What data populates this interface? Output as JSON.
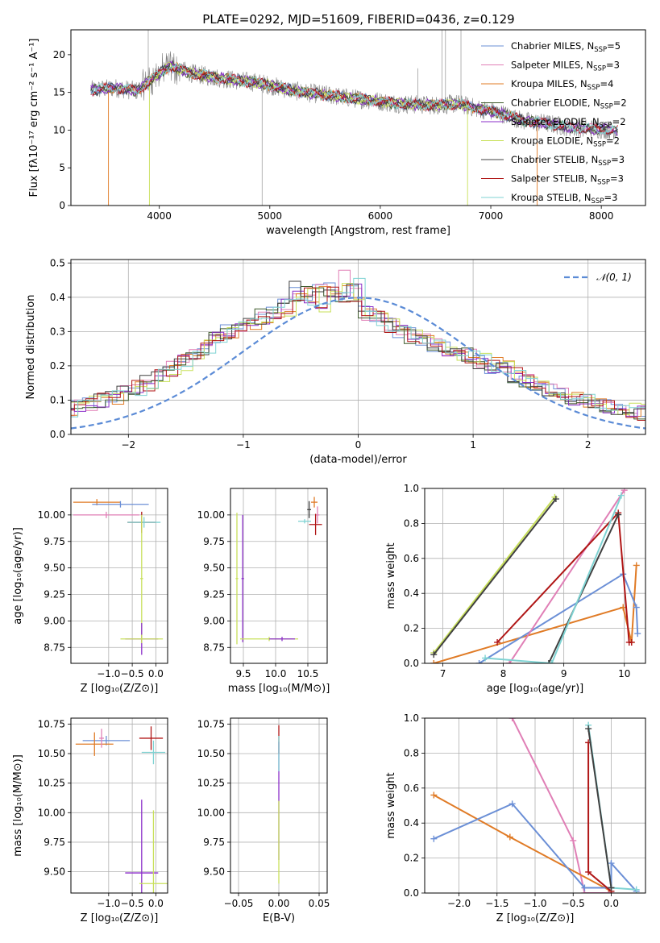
{
  "figure": {
    "title": "PLATE=0292, MJD=51609, FIBERID=0436, z=0.129"
  },
  "colors": {
    "Chabrier MILES": "#6b8fd6",
    "Salpeter MILES": "#e07fb6",
    "Kroupa MILES": "#e07b26",
    "Chabrier ELODIE": "#3d5a2a",
    "Salpeter ELODIE": "#8b2fc9",
    "Kroupa ELODIE": "#c8e05a",
    "Chabrier STELIB": "#404040",
    "Salpeter STELIB": "#b01616",
    "Kroupa STELIB": "#7fd3d3",
    "data": "#808080",
    "gaussian": "#5b8bd6"
  },
  "chart_data": [
    {
      "id": "spectrum",
      "type": "line",
      "xlabel": "wavelength [Angstrom, rest frame]",
      "ylabel": "Flux [fλ10⁻¹⁷ erg cm⁻² s⁻¹ A⁻¹]",
      "xlim": [
        3200,
        8400
      ],
      "ylim": [
        0,
        23.3
      ],
      "xticks": [
        4000,
        5000,
        6000,
        7000,
        8000
      ],
      "yticks": [
        0,
        5,
        10,
        15,
        20
      ],
      "grid": false,
      "legend_position": "top-right",
      "legend": [
        {
          "name": "Chabrier MILES",
          "label": "Chabrier MILES, N",
          "sub": "SSP",
          "eq": "=5"
        },
        {
          "name": "Salpeter MILES",
          "label": "Salpeter MILES, N",
          "sub": "SSP",
          "eq": "=3"
        },
        {
          "name": "Kroupa MILES",
          "label": "Kroupa MILES, N",
          "sub": "SSP",
          "eq": "=4"
        },
        {
          "name": "Chabrier ELODIE",
          "label": "Chabrier ELODIE, N",
          "sub": "SSP",
          "eq": "=2"
        },
        {
          "name": "Salpeter ELODIE",
          "label": "Salpeter ELODIE, N",
          "sub": "SSP",
          "eq": "=2"
        },
        {
          "name": "Kroupa ELODIE",
          "label": "Kroupa ELODIE, N",
          "sub": "SSP",
          "eq": "=2"
        },
        {
          "name": "Chabrier STELIB",
          "label": "Chabrier STELIB, N",
          "sub": "SSP",
          "eq": "=3"
        },
        {
          "name": "Salpeter STELIB",
          "label": "Salpeter STELIB, N",
          "sub": "SSP",
          "eq": "=3"
        },
        {
          "name": "Kroupa STELIB",
          "label": "Kroupa STELIB, N",
          "sub": "SSP",
          "eq": "=3"
        }
      ],
      "data_continuum": [
        [
          3380,
          15.3
        ],
        [
          3600,
          15.6
        ],
        [
          3800,
          15.2
        ],
        [
          3950,
          17.0
        ],
        [
          4100,
          18.5
        ],
        [
          4300,
          17.5
        ],
        [
          4500,
          17.0
        ],
        [
          4700,
          16.6
        ],
        [
          4900,
          16.3
        ],
        [
          5100,
          15.6
        ],
        [
          5300,
          15.0
        ],
        [
          5500,
          14.7
        ],
        [
          5700,
          14.3
        ],
        [
          5900,
          14.0
        ],
        [
          6100,
          13.6
        ],
        [
          6300,
          13.4
        ],
        [
          6500,
          13.3
        ],
        [
          6700,
          13.5
        ],
        [
          6900,
          12.8
        ],
        [
          7100,
          12.2
        ],
        [
          7300,
          11.2
        ],
        [
          7500,
          10.9
        ],
        [
          7700,
          10.4
        ],
        [
          7900,
          10.2
        ],
        [
          8150,
          10.0
        ]
      ],
      "data_spikes": [
        [
          3900,
          23.3
        ],
        [
          4930,
          0
        ],
        [
          6340,
          18.2
        ],
        [
          6560,
          23.3
        ],
        [
          6590,
          23.3
        ],
        [
          6730,
          23.3
        ]
      ],
      "model_edges": [
        {
          "name": "Kroupa MILES",
          "range": [
            3540,
            7420
          ]
        },
        {
          "name": "Kroupa ELODIE",
          "range": [
            3910,
            6790
          ]
        }
      ]
    },
    {
      "id": "residuals",
      "type": "step",
      "xlabel": "(data-model)/error",
      "ylabel": "Normed distribution",
      "xlim": [
        -2.5,
        2.5
      ],
      "ylim": [
        0,
        0.51
      ],
      "xticks": [
        -2,
        -1,
        0,
        1,
        2
      ],
      "yticks": [
        0.0,
        0.1,
        0.2,
        0.3,
        0.4,
        0.5
      ],
      "grid": true,
      "legend_position": "top-right",
      "gaussian": {
        "label": "𝒩(0, 1)",
        "mu": 0,
        "sigma": 1
      },
      "bin_width": 0.1,
      "base_histogram": [
        0.055,
        0.06,
        0.065,
        0.07,
        0.075,
        0.085,
        0.09,
        0.1,
        0.11,
        0.12,
        0.135,
        0.15,
        0.165,
        0.19,
        0.21,
        0.235,
        0.255,
        0.28,
        0.3,
        0.31,
        0.33,
        0.345,
        0.355,
        0.37,
        0.38,
        0.375,
        0.37,
        0.38,
        0.39,
        0.375,
        0.35,
        0.335,
        0.32,
        0.305,
        0.29,
        0.275,
        0.265,
        0.25,
        0.24,
        0.23,
        0.215,
        0.2,
        0.19,
        0.175,
        0.16,
        0.15,
        0.135,
        0.12,
        0.11,
        0.1,
        0.09,
        0.085,
        0.08,
        0.07,
        0.065,
        0.06,
        0.055,
        0.05,
        0.045,
        0.04
      ]
    },
    {
      "id": "Z-age",
      "type": "scatter",
      "xlabel": "Z [log₁₀(Z/Z⊙)]",
      "ylabel": "age  [log₁₀(age/yr)]",
      "xlim": [
        -1.8,
        0.25
      ],
      "ylim": [
        8.6,
        10.25
      ],
      "xticks": [
        -1,
        -0.5,
        0
      ],
      "yticks": [
        8.75,
        9.0,
        9.25,
        9.5,
        9.75,
        10.0
      ],
      "grid": true,
      "points": [
        {
          "name": "Kroupa MILES",
          "x": -1.25,
          "y": 10.12,
          "xerr": 0.5,
          "yerr": 0.03
        },
        {
          "name": "Chabrier MILES",
          "x": -0.75,
          "y": 10.1,
          "xerr": 0.6,
          "yerr": 0.03
        },
        {
          "name": "Salpeter MILES",
          "x": -1.05,
          "y": 10.0,
          "xerr": 0.7,
          "yerr": 0.03
        },
        {
          "name": "Salpeter STELIB",
          "x": -0.3,
          "y": 9.93,
          "xerr": 0.3,
          "yerr": 0.1
        },
        {
          "name": "Kroupa STELIB",
          "x": -0.25,
          "y": 9.93,
          "xerr": 0.35,
          "yerr": 0.05
        },
        {
          "name": "Kroupa ELODIE",
          "x": -0.3,
          "y": 9.4,
          "xerr": 0.03,
          "yerr": 0.6
        },
        {
          "name": "Salpeter ELODIE",
          "x": -0.3,
          "y": 8.83,
          "xerr": 0.35,
          "yerr": 0.15
        },
        {
          "name": "Kroupa ELODIE",
          "x": -0.3,
          "y": 8.83,
          "xerr": 0.45,
          "yerr": 0.04
        }
      ]
    },
    {
      "id": "mass-age",
      "type": "scatter",
      "xlabel": "mass [log₁₀(M/M⊙)]",
      "ylabel": "",
      "xlim": [
        9.3,
        10.8
      ],
      "ylim": [
        8.6,
        10.25
      ],
      "xticks": [
        9.5,
        10.0,
        10.5
      ],
      "yticks": [
        8.75,
        9.0,
        9.25,
        9.5,
        9.75,
        10.0
      ],
      "grid": true,
      "points": [
        {
          "name": "Kroupa ELODIE",
          "x": 9.4,
          "y": 9.4,
          "xerr": 0.02,
          "yerr": 0.62
        },
        {
          "name": "Salpeter ELODIE",
          "x": 9.49,
          "y": 9.4,
          "xerr": 0.02,
          "yerr": 0.6
        },
        {
          "name": "Kroupa ELODIE",
          "x": 9.9,
          "y": 8.83,
          "xerr": 0.45,
          "yerr": 0.02
        },
        {
          "name": "Salpeter ELODIE",
          "x": 10.1,
          "y": 8.83,
          "xerr": 0.2,
          "yerr": 0.02
        },
        {
          "name": "Kroupa STELIB",
          "x": 10.45,
          "y": 9.94,
          "xerr": 0.1,
          "yerr": 0.02
        },
        {
          "name": "Chabrier STELIB",
          "x": 10.52,
          "y": 10.05,
          "xerr": 0.03,
          "yerr": 0.08
        },
        {
          "name": "Kroupa MILES",
          "x": 10.6,
          "y": 10.12,
          "xerr": 0.05,
          "yerr": 0.05
        },
        {
          "name": "Salpeter MILES",
          "x": 10.65,
          "y": 10.0,
          "xerr": 0.03,
          "yerr": 0.08
        },
        {
          "name": "Salpeter STELIB",
          "x": 10.62,
          "y": 9.91,
          "xerr": 0.1,
          "yerr": 0.1
        }
      ]
    },
    {
      "id": "age-weight",
      "type": "line",
      "xlabel": "age  [log₁₀(age/yr)]",
      "ylabel": "mass weight",
      "xlim": [
        6.7,
        10.35
      ],
      "ylim": [
        0,
        1.0
      ],
      "xticks": [
        7,
        8,
        9,
        10
      ],
      "yticks": [
        0.0,
        0.2,
        0.4,
        0.6,
        0.8,
        1.0
      ],
      "grid": true,
      "series": [
        {
          "name": "Kroupa ELODIE",
          "x": [
            6.85,
            8.85
          ],
          "y": [
            0.06,
            0.95
          ]
        },
        {
          "name": "Chabrier STELIB",
          "x": [
            6.85,
            8.87
          ],
          "y": [
            0.05,
            0.94
          ]
        },
        {
          "name": "Kroupa MILES",
          "x": [
            6.85,
            9.98,
            10.12,
            10.2
          ],
          "y": [
            0.0,
            0.32,
            0.12,
            0.56
          ]
        },
        {
          "name": "Chabrier MILES",
          "x": [
            7.6,
            9.98,
            10.2,
            10.22
          ],
          "y": [
            0.0,
            0.51,
            0.32,
            0.17
          ]
        },
        {
          "name": "Salpeter MILES",
          "x": [
            8.1,
            10.0
          ],
          "y": [
            0.0,
            0.99
          ]
        },
        {
          "name": "Salpeter STELIB",
          "x": [
            7.9,
            9.9,
            10.08,
            10.12
          ],
          "y": [
            0.12,
            0.86,
            0.12,
            0.12
          ]
        },
        {
          "name": "Chabrier STELIB",
          "x": [
            8.75,
            9.9
          ],
          "y": [
            0.0,
            0.85
          ]
        },
        {
          "name": "Kroupa STELIB",
          "x": [
            7.7,
            8.8,
            9.95
          ],
          "y": [
            0.03,
            0.0,
            0.96
          ]
        }
      ]
    },
    {
      "id": "Z-mass",
      "type": "scatter",
      "xlabel": "Z [log₁₀(Z/Z⊙)]",
      "ylabel": "mass [log₁₀(M/M⊙)]",
      "xlim": [
        -1.8,
        0.25
      ],
      "ylim": [
        9.32,
        10.8
      ],
      "xticks": [
        -1,
        -0.5,
        0
      ],
      "yticks": [
        9.5,
        9.75,
        10.0,
        10.25,
        10.5,
        10.75
      ],
      "grid": true,
      "points": [
        {
          "name": "Chabrier MILES",
          "x": -1.05,
          "y": 10.61,
          "xerr": 0.5,
          "yerr": 0.04
        },
        {
          "name": "Kroupa MILES",
          "x": -1.3,
          "y": 10.58,
          "xerr": 0.4,
          "yerr": 0.1
        },
        {
          "name": "Salpeter MILES",
          "x": -1.15,
          "y": 10.63,
          "xerr": 0.05,
          "yerr": 0.08
        },
        {
          "name": "Salpeter STELIB",
          "x": -0.1,
          "y": 10.63,
          "xerr": 0.25,
          "yerr": 0.1
        },
        {
          "name": "Kroupa STELIB",
          "x": -0.05,
          "y": 10.51,
          "xerr": 0.25,
          "yerr": 0.1
        },
        {
          "name": "Salpeter ELODIE",
          "x": -0.3,
          "y": 9.49,
          "xerr": 0.35,
          "yerr": 0.62
        },
        {
          "name": "Kroupa ELODIE",
          "x": -0.05,
          "y": 9.4,
          "xerr": 0.3,
          "yerr": 0.62
        }
      ]
    },
    {
      "id": "ebv-mass",
      "type": "scatter",
      "xlabel": "E(B-V)",
      "ylabel": "",
      "xlim": [
        -0.06,
        0.06
      ],
      "ylim": [
        9.32,
        10.8
      ],
      "xticks": [
        -0.05,
        0.0,
        0.05
      ],
      "yticks": [
        9.5,
        9.75,
        10.0,
        10.25,
        10.5,
        10.75
      ],
      "grid": true,
      "points": [
        {
          "name": "Salpeter STELIB",
          "x": 0.0,
          "y": 10.62,
          "xerr": 0.0,
          "yerr": 0.12
        },
        {
          "name": "Salpeter ELODIE",
          "x": 0.0,
          "y": 10.1,
          "xerr": 0.0,
          "yerr": 0.5
        },
        {
          "name": "Kroupa ELODIE",
          "x": 0.0,
          "y": 9.75,
          "xerr": 0.0,
          "yerr": 0.35
        },
        {
          "name": "Kroupa STELIB",
          "x": 0.0,
          "y": 10.5,
          "xerr": 0.0,
          "yerr": 0.15
        }
      ]
    },
    {
      "id": "Z-weight",
      "type": "line",
      "xlabel": "Z [log₁₀(Z/Z⊙)]",
      "ylabel": "mass weight",
      "xlim": [
        -2.45,
        0.45
      ],
      "ylim": [
        0,
        1.0
      ],
      "xticks": [
        -2.0,
        -1.5,
        -1.0,
        -0.5,
        0.0
      ],
      "yticks": [
        0.0,
        0.2,
        0.4,
        0.6,
        0.8,
        1.0
      ],
      "grid": true,
      "series": [
        {
          "name": "Salpeter MILES",
          "x": [
            -1.3,
            -0.5,
            -0.35,
            0.0
          ],
          "y": [
            1.0,
            0.3,
            0.0,
            0.0
          ]
        },
        {
          "name": "Kroupa MILES",
          "x": [
            -2.33,
            -1.33,
            0.0
          ],
          "y": [
            0.56,
            0.32,
            0.01
          ]
        },
        {
          "name": "Chabrier MILES",
          "x": [
            -2.33,
            -1.3,
            -0.35,
            0.0,
            0.0,
            0.33
          ],
          "y": [
            0.31,
            0.51,
            0.03,
            0.03,
            0.17,
            0.01
          ]
        },
        {
          "name": "Salpeter STELIB",
          "x": [
            -0.3,
            -0.3,
            0.0
          ],
          "y": [
            0.86,
            0.12,
            0.01
          ]
        },
        {
          "name": "Kroupa STELIB",
          "x": [
            -0.3,
            0.0,
            0.33
          ],
          "y": [
            0.96,
            0.03,
            0.02
          ]
        },
        {
          "name": "Chabrier STELIB",
          "x": [
            -0.3,
            0.0
          ],
          "y": [
            0.94,
            0.03
          ]
        }
      ]
    }
  ]
}
